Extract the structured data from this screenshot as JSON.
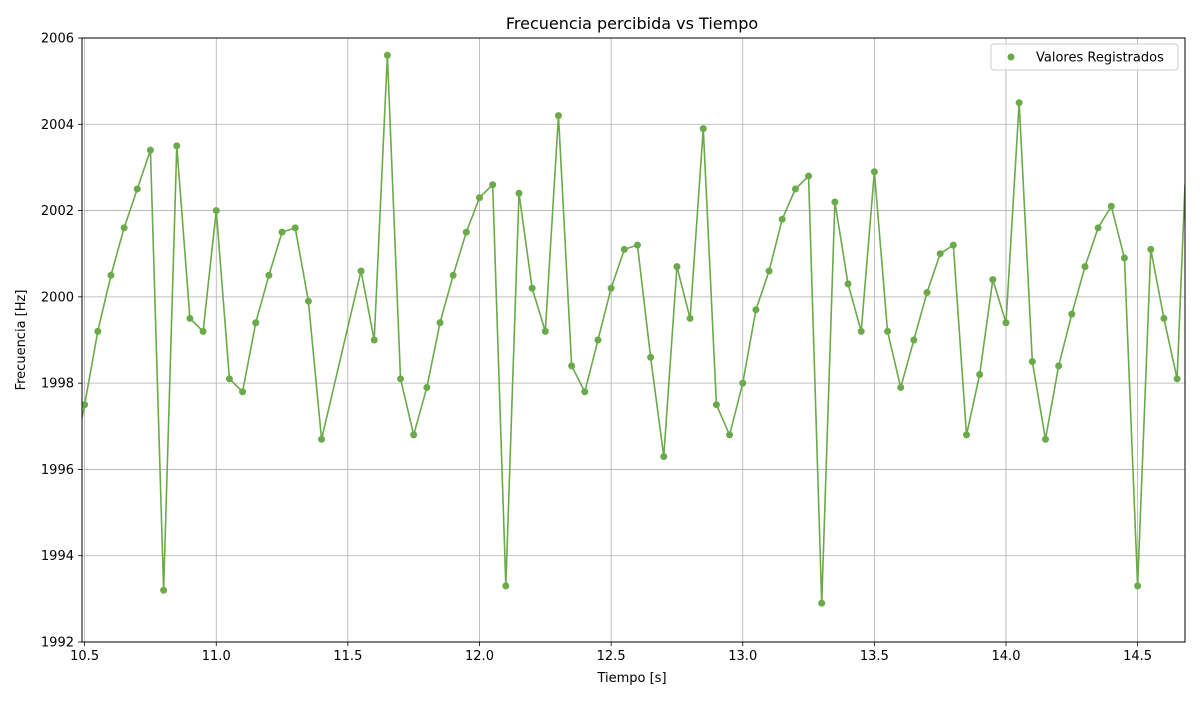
{
  "chart_data": {
    "type": "line",
    "title": "Frecuencia percibida vs Tiempo",
    "xlabel": "Tiempo [s]",
    "ylabel": "Frecuencia [Hz]",
    "xlim": [
      10.49,
      14.68
    ],
    "ylim": [
      1992,
      2006
    ],
    "xticks": [
      "10.5",
      "11.0",
      "11.5",
      "12.0",
      "12.5",
      "13.0",
      "13.5",
      "14.0",
      "14.5"
    ],
    "yticks": [
      "1992",
      "1994",
      "1996",
      "1998",
      "2000",
      "2002",
      "2004",
      "2006"
    ],
    "grid": true,
    "legend_position": "top-right",
    "color": "#6aaa4a",
    "series": [
      {
        "name": "Valores Registrados",
        "points": [
          [
            10.5,
            1997.5
          ],
          [
            10.55,
            1999.2
          ],
          [
            10.6,
            2000.5
          ],
          [
            10.65,
            2001.6
          ],
          [
            10.7,
            2002.5
          ],
          [
            10.75,
            2003.4
          ],
          [
            10.8,
            1993.2
          ],
          [
            10.85,
            2003.5
          ],
          [
            10.9,
            1999.5
          ],
          [
            10.95,
            1999.2
          ],
          [
            11.0,
            2002.0
          ],
          [
            11.05,
            1998.1
          ],
          [
            11.1,
            1997.8
          ],
          [
            11.15,
            1999.4
          ],
          [
            11.2,
            2000.5
          ],
          [
            11.25,
            2001.5
          ],
          [
            11.3,
            2001.6
          ],
          [
            11.35,
            1999.9
          ],
          [
            11.4,
            1996.7
          ],
          [
            11.55,
            2000.6
          ],
          [
            11.6,
            1999.0
          ],
          [
            11.65,
            2005.6
          ],
          [
            11.7,
            1998.1
          ],
          [
            11.75,
            1996.8
          ],
          [
            11.8,
            1997.9
          ],
          [
            11.85,
            1999.4
          ],
          [
            11.9,
            2000.5
          ],
          [
            11.95,
            2001.5
          ],
          [
            12.0,
            2002.3
          ],
          [
            12.05,
            2002.6
          ],
          [
            12.1,
            1993.3
          ],
          [
            12.15,
            2002.4
          ],
          [
            12.2,
            2000.2
          ],
          [
            12.25,
            1999.2
          ],
          [
            12.3,
            2004.2
          ],
          [
            12.35,
            1998.4
          ],
          [
            12.4,
            1997.8
          ],
          [
            12.45,
            1999.0
          ],
          [
            12.5,
            2000.2
          ],
          [
            12.55,
            2001.1
          ],
          [
            12.6,
            2001.2
          ],
          [
            12.65,
            1998.6
          ],
          [
            12.7,
            1996.3
          ],
          [
            12.75,
            2000.7
          ],
          [
            12.8,
            1999.5
          ],
          [
            12.85,
            2003.9
          ],
          [
            12.9,
            1997.5
          ],
          [
            12.95,
            1996.8
          ],
          [
            13.0,
            1998.0
          ],
          [
            13.05,
            1999.7
          ],
          [
            13.1,
            2000.6
          ],
          [
            13.15,
            2001.8
          ],
          [
            13.2,
            2002.5
          ],
          [
            13.25,
            2002.8
          ],
          [
            13.3,
            1992.9
          ],
          [
            13.35,
            2002.2
          ],
          [
            13.4,
            2000.3
          ],
          [
            13.45,
            1999.2
          ],
          [
            13.5,
            2002.9
          ],
          [
            13.55,
            1999.2
          ],
          [
            13.6,
            1997.9
          ],
          [
            13.65,
            1999.0
          ],
          [
            13.7,
            2000.1
          ],
          [
            13.75,
            2001.0
          ],
          [
            13.8,
            2001.2
          ],
          [
            13.85,
            1996.8
          ],
          [
            13.9,
            1998.2
          ],
          [
            13.95,
            2000.4
          ],
          [
            14.0,
            1999.4
          ],
          [
            14.05,
            2004.5
          ],
          [
            14.1,
            1998.5
          ],
          [
            14.15,
            1996.7
          ],
          [
            14.2,
            1998.4
          ],
          [
            14.25,
            1999.6
          ],
          [
            14.3,
            2000.7
          ],
          [
            14.35,
            2001.6
          ],
          [
            14.4,
            2002.1
          ],
          [
            14.45,
            2000.9
          ],
          [
            14.5,
            1993.3
          ],
          [
            14.55,
            2001.1
          ],
          [
            14.6,
            1999.5
          ],
          [
            14.65,
            1998.1
          ]
        ],
        "line_extends": [
          [
            10.49,
            1997.2
          ],
          [
            14.68,
            2002.6
          ]
        ]
      }
    ]
  }
}
